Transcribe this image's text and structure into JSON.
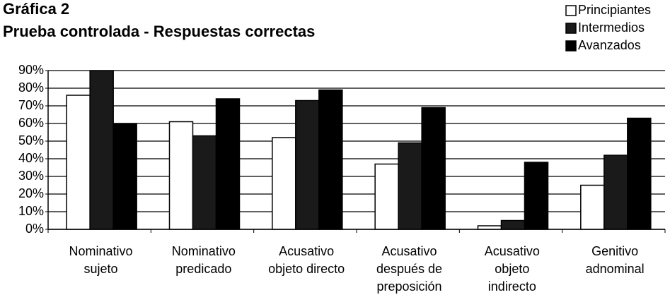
{
  "chart_data": {
    "type": "bar",
    "title": "Gráfica 2",
    "subtitle": "Prueba controlada - Respuestas correctas",
    "categories": [
      "Nominativo\nsujeto",
      "Nominativo\npredicado",
      "Acusativo\nobjeto directo",
      "Acusativo\ndespués de\npreposición",
      "Acusativo\nobjeto\nindirecto",
      "Genitivo\nadnominal"
    ],
    "series": [
      {
        "name": "Principiantes",
        "color": "#ffffff",
        "values": [
          76,
          61,
          52,
          37,
          2,
          25
        ]
      },
      {
        "name": "Intermedios",
        "color": "#1a1a1a",
        "values": [
          90,
          53,
          73,
          49,
          5,
          42
        ]
      },
      {
        "name": "Avanzados",
        "color": "#000000",
        "values": [
          60,
          74,
          79,
          69,
          38,
          63
        ]
      }
    ],
    "ylim": [
      0,
      90
    ],
    "yticks": [
      {
        "value": 0,
        "label": "0%"
      },
      {
        "value": 10,
        "label": "10%"
      },
      {
        "value": 20,
        "label": "20%"
      },
      {
        "value": 30,
        "label": "30%"
      },
      {
        "value": 40,
        "label": "40%"
      },
      {
        "value": 50,
        "label": "50%"
      },
      {
        "value": 60,
        "label": "60%"
      },
      {
        "value": 70,
        "label": "70%"
      },
      {
        "value": 80,
        "label": "80%"
      },
      {
        "value": 90,
        "label": "90%"
      }
    ],
    "grid": true,
    "legend": "top-right"
  }
}
